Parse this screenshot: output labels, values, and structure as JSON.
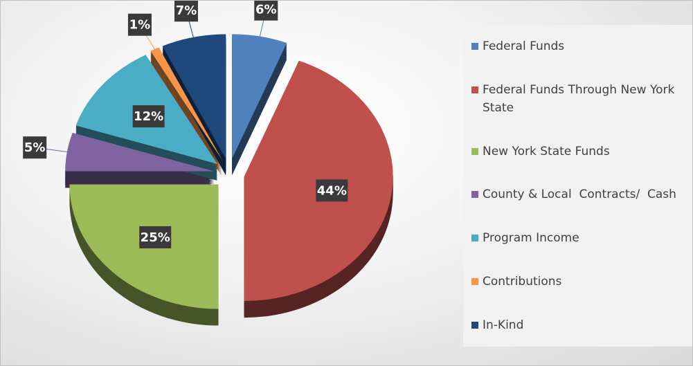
{
  "chart_data": {
    "type": "pie",
    "categories": [
      "Federal Funds",
      "Federal Funds Through New York State",
      "New York State Funds",
      "County & Local  Contracts/  Cash",
      "Program Income",
      "Contributions",
      "In-Kind"
    ],
    "values": [
      6,
      44,
      25,
      5,
      12,
      1,
      7
    ],
    "value_labels": [
      "6%",
      "44%",
      "25%",
      "5%",
      "12%",
      "1%",
      "7%"
    ],
    "colors": [
      "#4f81bd",
      "#c0504d",
      "#9bbb59",
      "#8064a2",
      "#4bacc6",
      "#f79646",
      "#1f497d"
    ],
    "legend": "right"
  }
}
